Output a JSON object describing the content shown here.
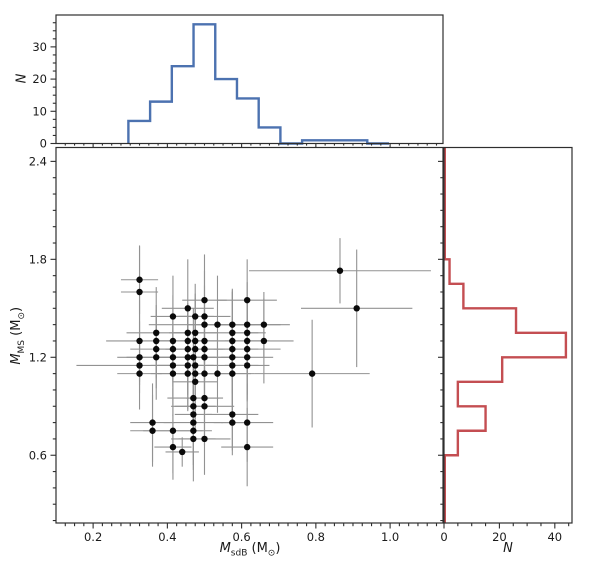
{
  "figure": {
    "background": "#ffffff",
    "spine_color": "#2e2e2e",
    "tick_color": "#2e2e2e",
    "text_color": "#1a1a1a",
    "errorbar_color": "#929292",
    "dot_color": "#0a0a0a",
    "top_hist_color": "#4C72B0",
    "right_hist_color": "#C44E52"
  },
  "labels": {
    "top_y": "N",
    "right_x": "N",
    "main_x": {
      "v": "M",
      "s": "sdB",
      "u": " (M",
      "us": "⊙",
      "c": ")"
    },
    "main_y": {
      "v": "M",
      "s": "MS",
      "u": " (M",
      "us": "⊙",
      "c": ")"
    }
  },
  "chart_data": [
    {
      "id": "top_histogram",
      "type": "bar",
      "subtype": "step-histogram",
      "orientation": "vertical",
      "ylabel": "N",
      "xlabel": "",
      "bin_edges": [
        0.295,
        0.3535,
        0.412,
        0.4705,
        0.529,
        0.5875,
        0.646,
        0.7045,
        0.763,
        0.8215,
        0.88,
        0.9385,
        0.997
      ],
      "counts": [
        7,
        13,
        24,
        37,
        20,
        14,
        5,
        0,
        1,
        1,
        1,
        0
      ],
      "ylim": [
        0,
        39.9
      ],
      "yticks": [
        0,
        10,
        20,
        30
      ],
      "ytick_labels": [
        "0",
        "10",
        "20",
        "30"
      ],
      "y_minor_step": 2.5,
      "grid": false,
      "legend": "none"
    },
    {
      "id": "main_scatter",
      "type": "scatter",
      "xlabel": "M_sdB (M_sun)",
      "ylabel": "M_MS (M_sun)",
      "xlim": [
        0.1,
        1.1425
      ],
      "ylim": [
        0.185,
        2.485
      ],
      "xticks": [
        0.2,
        0.4,
        0.6,
        0.8,
        1.0
      ],
      "xtick_labels": [
        "0.2",
        "0.4",
        "0.6",
        "0.8",
        "1.0"
      ],
      "yticks": [
        0.6,
        1.2,
        1.8,
        2.4
      ],
      "ytick_labels": [
        "0.6",
        "1.2",
        "1.8",
        "2.4"
      ],
      "x_minor_step": 0.025,
      "y_minor_step": 0.1,
      "grid": false,
      "legend": "none",
      "marker": "circle",
      "points_format": [
        "x",
        "y",
        "xerr",
        "yerr"
      ],
      "points": [
        [
          0.325,
          1.675,
          0.05,
          0.21
        ],
        [
          0.325,
          1.6,
          0.05,
          0.28
        ],
        [
          0.865,
          1.73,
          0.245,
          0.2
        ],
        [
          0.5,
          1.55,
          0.06,
          0.28
        ],
        [
          0.615,
          1.55,
          0.08,
          0.25
        ],
        [
          0.455,
          1.5,
          0.07,
          0.3
        ],
        [
          0.91,
          1.5,
          0.15,
          0.36
        ],
        [
          0.415,
          1.45,
          0.06,
          0.25
        ],
        [
          0.475,
          1.45,
          0.05,
          0.2
        ],
        [
          0.5,
          1.45,
          0.07,
          0.28
        ],
        [
          0.5,
          1.4,
          0.15,
          0.24
        ],
        [
          0.535,
          1.4,
          0.08,
          0.3
        ],
        [
          0.575,
          1.4,
          0.06,
          0.22
        ],
        [
          0.615,
          1.4,
          0.09,
          0.26
        ],
        [
          0.66,
          1.4,
          0.07,
          0.2
        ],
        [
          0.37,
          1.35,
          0.08,
          0.28
        ],
        [
          0.455,
          1.35,
          0.05,
          0.18
        ],
        [
          0.475,
          1.35,
          0.06,
          0.24
        ],
        [
          0.575,
          1.35,
          0.07,
          0.26
        ],
        [
          0.615,
          1.35,
          0.05,
          0.2
        ],
        [
          0.325,
          1.3,
          0.09,
          0.25
        ],
        [
          0.37,
          1.3,
          0.06,
          0.22
        ],
        [
          0.415,
          1.3,
          0.05,
          0.28
        ],
        [
          0.455,
          1.3,
          0.08,
          0.2
        ],
        [
          0.475,
          1.3,
          0.04,
          0.26
        ],
        [
          0.5,
          1.3,
          0.07,
          0.24
        ],
        [
          0.575,
          1.3,
          0.1,
          0.3
        ],
        [
          0.615,
          1.3,
          0.06,
          0.22
        ],
        [
          0.66,
          1.3,
          0.08,
          0.26
        ],
        [
          0.37,
          1.25,
          0.07,
          0.24
        ],
        [
          0.415,
          1.25,
          0.05,
          0.2
        ],
        [
          0.455,
          1.25,
          0.06,
          0.28
        ],
        [
          0.475,
          1.25,
          0.08,
          0.22
        ],
        [
          0.5,
          1.25,
          0.05,
          0.25
        ],
        [
          0.575,
          1.25,
          0.07,
          0.2
        ],
        [
          0.615,
          1.25,
          0.09,
          0.28
        ],
        [
          0.325,
          1.2,
          0.06,
          0.22
        ],
        [
          0.37,
          1.2,
          0.08,
          0.26
        ],
        [
          0.415,
          1.2,
          0.05,
          0.24
        ],
        [
          0.455,
          1.2,
          0.07,
          0.2
        ],
        [
          0.47,
          1.2,
          0.06,
          0.3
        ],
        [
          0.5,
          1.2,
          0.09,
          0.24
        ],
        [
          0.575,
          1.2,
          0.05,
          0.22
        ],
        [
          0.615,
          1.2,
          0.07,
          0.26
        ],
        [
          0.325,
          1.15,
          0.17,
          0.12
        ],
        [
          0.415,
          1.15,
          0.06,
          0.24
        ],
        [
          0.455,
          1.15,
          0.08,
          0.28
        ],
        [
          0.475,
          1.15,
          0.05,
          0.2
        ],
        [
          0.575,
          1.15,
          0.07,
          0.24
        ],
        [
          0.615,
          1.15,
          0.06,
          0.22
        ],
        [
          0.325,
          1.1,
          0.06,
          0.22
        ],
        [
          0.415,
          1.1,
          0.06,
          0.26
        ],
        [
          0.455,
          1.1,
          0.08,
          0.22
        ],
        [
          0.475,
          1.1,
          0.05,
          0.28
        ],
        [
          0.5,
          1.1,
          0.07,
          0.2
        ],
        [
          0.535,
          1.1,
          0.09,
          0.24
        ],
        [
          0.575,
          1.1,
          0.06,
          0.26
        ],
        [
          0.79,
          1.1,
          0.155,
          0.33
        ],
        [
          0.475,
          1.05,
          0.06,
          0.3
        ],
        [
          0.47,
          0.95,
          0.07,
          0.22
        ],
        [
          0.5,
          0.95,
          0.05,
          0.26
        ],
        [
          0.47,
          0.9,
          0.06,
          0.2
        ],
        [
          0.5,
          0.9,
          0.08,
          0.24
        ],
        [
          0.47,
          0.85,
          0.05,
          0.28
        ],
        [
          0.575,
          0.85,
          0.07,
          0.22
        ],
        [
          0.36,
          0.8,
          0.06,
          0.24
        ],
        [
          0.47,
          0.8,
          0.08,
          0.26
        ],
        [
          0.575,
          0.8,
          0.05,
          0.2
        ],
        [
          0.615,
          0.8,
          0.07,
          0.24
        ],
        [
          0.36,
          0.75,
          0.06,
          0.22
        ],
        [
          0.415,
          0.75,
          0.08,
          0.26
        ],
        [
          0.47,
          0.75,
          0.05,
          0.24
        ],
        [
          0.47,
          0.7,
          0.06,
          0.26
        ],
        [
          0.5,
          0.7,
          0.07,
          0.22
        ],
        [
          0.415,
          0.65,
          0.05,
          0.2
        ],
        [
          0.615,
          0.65,
          0.07,
          0.24
        ],
        [
          0.44,
          0.62,
          0.045,
          0.09
        ]
      ]
    },
    {
      "id": "right_histogram",
      "type": "bar",
      "subtype": "step-histogram",
      "orientation": "horizontal",
      "xlabel": "N",
      "ylabel": "",
      "bin_edges": [
        0.6,
        0.75,
        0.9,
        1.05,
        1.2,
        1.35,
        1.5,
        1.65,
        1.8
      ],
      "counts": [
        5,
        15,
        5,
        21,
        44,
        26,
        7,
        2
      ],
      "xlim": [
        0,
        46.2
      ],
      "xticks": [
        0,
        20,
        40
      ],
      "xtick_labels": [
        "0",
        "20",
        "40"
      ],
      "x_minor_step": 5,
      "grid": false,
      "legend": "none"
    }
  ]
}
